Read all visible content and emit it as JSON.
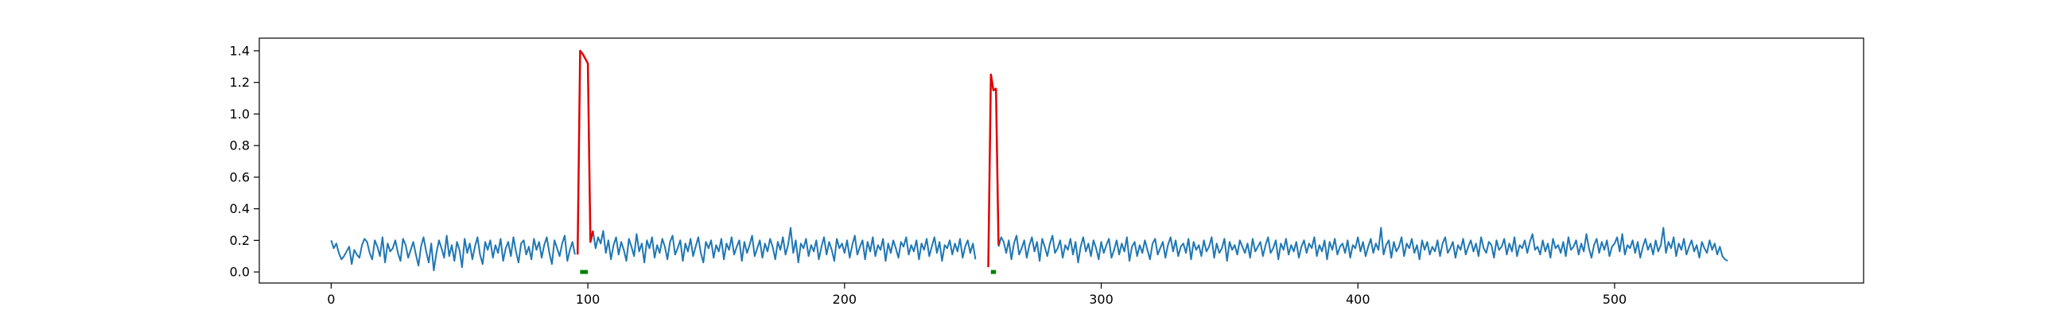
{
  "chart_data": {
    "type": "line",
    "title": "",
    "xlabel": "",
    "ylabel": "",
    "xlim": [
      -28,
      597
    ],
    "ylim": [
      -0.07,
      1.48
    ],
    "grid": false,
    "legend": "none",
    "x_ticks": [
      {
        "value": 0,
        "label": "0"
      },
      {
        "value": 100,
        "label": "100"
      },
      {
        "value": 200,
        "label": "200"
      },
      {
        "value": 300,
        "label": "300"
      },
      {
        "value": 400,
        "label": "400"
      },
      {
        "value": 500,
        "label": "500"
      }
    ],
    "y_ticks": [
      {
        "value": 0.0,
        "label": "0.0"
      },
      {
        "value": 0.2,
        "label": "0.2"
      },
      {
        "value": 0.4,
        "label": "0.4"
      },
      {
        "value": 0.6,
        "label": "0.6"
      },
      {
        "value": 0.8,
        "label": "0.8"
      },
      {
        "value": 1.0,
        "label": "1.0"
      },
      {
        "value": 1.2,
        "label": "1.2"
      },
      {
        "value": 1.4,
        "label": "1.4"
      }
    ],
    "series": [
      {
        "color": "#1f77b4",
        "x_start": 0,
        "x_step": 1,
        "values": [
          0.2,
          0.15,
          0.18,
          0.12,
          0.08,
          0.1,
          0.13,
          0.16,
          0.05,
          0.14,
          0.11,
          0.09,
          0.17,
          0.21,
          0.19,
          0.12,
          0.08,
          0.2,
          0.16,
          0.1,
          0.22,
          0.06,
          0.18,
          0.13,
          0.15,
          0.2,
          0.12,
          0.07,
          0.21,
          0.17,
          0.09,
          0.14,
          0.19,
          0.11,
          0.04,
          0.16,
          0.22,
          0.13,
          0.06,
          0.18,
          0.01,
          0.12,
          0.2,
          0.15,
          0.09,
          0.23,
          0.1,
          0.17,
          0.07,
          0.19,
          0.14,
          0.03,
          0.21,
          0.12,
          0.18,
          0.08,
          0.16,
          0.22,
          0.11,
          0.05,
          0.19,
          0.14,
          0.2,
          0.09,
          0.17,
          0.12,
          0.21,
          0.07,
          0.15,
          0.19,
          0.1,
          0.22,
          0.13,
          0.06,
          0.18,
          0.2,
          0.11,
          0.16,
          0.08,
          0.21,
          0.14,
          0.19,
          0.09,
          0.17,
          0.22,
          0.12,
          0.05,
          0.2,
          0.15,
          0.1,
          0.18,
          0.23,
          0.07,
          0.14,
          0.19,
          0.11
        ],
        "values_after_1": [
          0.26,
          0.15,
          0.22,
          0.18,
          0.26,
          0.12,
          0.2,
          0.08,
          0.17,
          0.22,
          0.11,
          0.19,
          0.14,
          0.07,
          0.21,
          0.16,
          0.1,
          0.24,
          0.13,
          0.18,
          0.06,
          0.2,
          0.15,
          0.22,
          0.09,
          0.17,
          0.12,
          0.21,
          0.16,
          0.08,
          0.19,
          0.23,
          0.11,
          0.15,
          0.2,
          0.07,
          0.18,
          0.13,
          0.21,
          0.1,
          0.16,
          0.22,
          0.12,
          0.06,
          0.19,
          0.15,
          0.2,
          0.09,
          0.17,
          0.13,
          0.21,
          0.08,
          0.18,
          0.14,
          0.22,
          0.11,
          0.16,
          0.2,
          0.07,
          0.19,
          0.12,
          0.17,
          0.23,
          0.1,
          0.15,
          0.2,
          0.09,
          0.18,
          0.13,
          0.21,
          0.16,
          0.08,
          0.19,
          0.14,
          0.22,
          0.11,
          0.17,
          0.28,
          0.12,
          0.2,
          0.06,
          0.18,
          0.15,
          0.21,
          0.1,
          0.17,
          0.13,
          0.2,
          0.08,
          0.16,
          0.22,
          0.11,
          0.19,
          0.14,
          0.07,
          0.21,
          0.15,
          0.18,
          0.12,
          0.2,
          0.09,
          0.17,
          0.23,
          0.11,
          0.16,
          0.2,
          0.08,
          0.19,
          0.13,
          0.22,
          0.1,
          0.17,
          0.14,
          0.21,
          0.07,
          0.18,
          0.12,
          0.2,
          0.15,
          0.09,
          0.19,
          0.16,
          0.22,
          0.11,
          0.17,
          0.13,
          0.2,
          0.08,
          0.18,
          0.14,
          0.21,
          0.1,
          0.16,
          0.22,
          0.12,
          0.19,
          0.07,
          0.17,
          0.15,
          0.2,
          0.11,
          0.18,
          0.13,
          0.21,
          0.09,
          0.16,
          0.2,
          0.12,
          0.18,
          0.08
        ],
        "values_after_2": [
          0.16,
          0.22,
          0.19,
          0.12,
          0.2,
          0.08,
          0.18,
          0.23,
          0.11,
          0.15,
          0.2,
          0.09,
          0.17,
          0.22,
          0.13,
          0.19,
          0.07,
          0.21,
          0.16,
          0.1,
          0.18,
          0.23,
          0.12,
          0.15,
          0.2,
          0.09,
          0.17,
          0.14,
          0.21,
          0.11,
          0.19,
          0.06,
          0.16,
          0.22,
          0.13,
          0.18,
          0.1,
          0.2,
          0.15,
          0.08,
          0.19,
          0.12,
          0.17,
          0.21,
          0.09,
          0.14,
          0.2,
          0.11,
          0.18,
          0.13,
          0.22,
          0.07,
          0.16,
          0.19,
          0.1,
          0.17,
          0.12,
          0.2,
          0.14,
          0.08,
          0.18,
          0.21,
          0.11,
          0.15,
          0.19,
          0.09,
          0.17,
          0.22,
          0.13,
          0.2,
          0.1,
          0.16,
          0.18,
          0.12,
          0.21,
          0.08,
          0.19,
          0.14,
          0.17,
          0.1,
          0.2,
          0.13,
          0.16,
          0.22,
          0.09,
          0.18,
          0.12,
          0.15,
          0.21,
          0.07,
          0.19,
          0.14,
          0.17,
          0.11,
          0.2,
          0.16,
          0.12,
          0.18,
          0.09,
          0.21,
          0.13,
          0.16,
          0.19,
          0.1,
          0.17,
          0.22,
          0.12,
          0.15,
          0.2,
          0.08,
          0.18,
          0.14,
          0.21,
          0.11,
          0.17,
          0.13,
          0.19,
          0.09,
          0.16,
          0.2,
          0.12,
          0.18,
          0.15,
          0.22,
          0.1,
          0.17,
          0.13,
          0.2,
          0.08,
          0.19,
          0.14,
          0.21,
          0.11,
          0.16,
          0.18,
          0.12,
          0.2,
          0.09,
          0.17,
          0.15,
          0.22,
          0.13,
          0.19,
          0.1,
          0.16,
          0.21,
          0.12,
          0.18,
          0.14,
          0.28,
          0.11,
          0.17,
          0.2,
          0.09,
          0.19,
          0.13,
          0.16,
          0.22,
          0.1,
          0.18,
          0.15,
          0.21,
          0.12,
          0.17,
          0.08,
          0.2,
          0.14,
          0.19,
          0.11,
          0.16,
          0.13,
          0.2,
          0.1,
          0.18,
          0.22,
          0.12,
          0.15,
          0.19,
          0.09,
          0.17,
          0.14,
          0.21,
          0.11,
          0.16,
          0.2,
          0.13,
          0.18,
          0.1,
          0.22,
          0.15,
          0.12,
          0.19,
          0.17,
          0.09,
          0.2,
          0.14,
          0.16,
          0.21,
          0.11,
          0.18,
          0.13,
          0.22,
          0.1,
          0.17,
          0.15,
          0.2,
          0.12,
          0.19,
          0.24,
          0.14,
          0.16,
          0.11,
          0.2,
          0.13,
          0.18,
          0.09,
          0.21,
          0.15,
          0.17,
          0.12,
          0.19,
          0.1,
          0.22,
          0.14,
          0.16,
          0.2,
          0.11,
          0.18,
          0.13,
          0.24,
          0.15,
          0.09,
          0.17,
          0.21,
          0.12,
          0.19,
          0.14,
          0.2,
          0.1,
          0.16,
          0.18,
          0.22,
          0.13,
          0.24,
          0.11,
          0.17,
          0.15,
          0.2,
          0.12,
          0.19,
          0.09,
          0.16,
          0.21,
          0.14,
          0.18,
          0.11,
          0.2,
          0.13,
          0.17,
          0.28,
          0.12,
          0.19,
          0.15,
          0.22,
          0.1,
          0.18,
          0.14,
          0.21,
          0.11,
          0.16,
          0.2,
          0.13,
          0.17,
          0.09,
          0.19,
          0.15,
          0.12,
          0.2,
          0.14,
          0.18,
          0.11,
          0.16,
          0.1,
          0.08,
          0.07
        ]
      },
      {
        "color": "#e00000",
        "segments": [
          {
            "x": [
              96,
              97,
              98,
              99,
              100,
              101,
              102
            ],
            "y": [
              0.11,
              1.4,
              1.38,
              1.35,
              1.32,
              0.19,
              0.26
            ]
          },
          {
            "x": [
              256,
              257,
              258,
              259,
              260
            ],
            "y": [
              0.03,
              1.25,
              1.15,
              1.16,
              0.17
            ]
          }
        ]
      }
    ],
    "markers": {
      "color": "#008000",
      "ranges": [
        [
          97,
          100
        ],
        [
          257,
          259
        ]
      ],
      "y": 0.0
    }
  }
}
